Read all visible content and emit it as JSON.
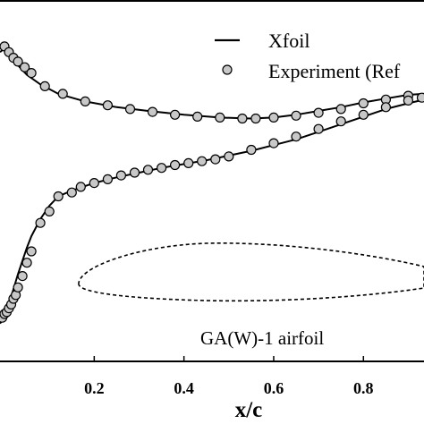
{
  "chart_data": {
    "type": "line",
    "xlabel": "x/c",
    "ylabel": "",
    "xlim": [
      -0.01,
      0.935
    ],
    "ylim": [
      -1.25,
      0.65
    ],
    "x_ticks": [
      0.2,
      0.4,
      0.6,
      0.8
    ],
    "x_tick_labels": [
      "0.2",
      "0.4",
      "0.6",
      "0.8"
    ],
    "grid": false,
    "legend_position": "top-right",
    "legend": [
      {
        "label": "Xfoil",
        "marker": "line"
      },
      {
        "label": "Experiment (Ref",
        "marker": "circle"
      }
    ],
    "annotation": "GA(W)-1 airfoil",
    "colors": {
      "line": "#000000",
      "marker_fill": "#c8c8c8",
      "marker_edge": "#000000"
    },
    "series": [
      {
        "name": "Xfoil",
        "role": "upper-surface",
        "x": [
          -0.01,
          0.0,
          0.01,
          0.02,
          0.03,
          0.05,
          0.08,
          0.12,
          0.18,
          0.25,
          0.32,
          0.4,
          0.48,
          0.55,
          0.6,
          0.65,
          0.7,
          0.75,
          0.8,
          0.85,
          0.9,
          0.935
        ],
        "y": [
          0.38,
          0.4,
          0.37,
          0.34,
          0.31,
          0.26,
          0.21,
          0.16,
          0.12,
          0.09,
          0.07,
          0.05,
          0.035,
          0.03,
          0.035,
          0.05,
          0.07,
          0.09,
          0.115,
          0.135,
          0.155,
          0.16
        ]
      },
      {
        "name": "Xfoil",
        "role": "lower-surface",
        "x": [
          -0.01,
          0.0,
          0.005,
          0.01,
          0.015,
          0.02,
          0.03,
          0.04,
          0.05,
          0.06,
          0.08,
          0.1,
          0.12,
          0.15,
          0.2,
          0.25,
          0.3,
          0.35,
          0.4,
          0.45,
          0.5,
          0.55,
          0.6,
          0.65,
          0.7,
          0.75,
          0.8,
          0.85,
          0.9,
          0.935
        ],
        "y": [
          -1.05,
          -1.02,
          -0.98,
          -0.94,
          -0.91,
          -0.87,
          -0.79,
          -0.72,
          -0.65,
          -0.59,
          -0.5,
          -0.43,
          -0.38,
          -0.35,
          -0.31,
          -0.28,
          -0.255,
          -0.23,
          -0.21,
          -0.19,
          -0.165,
          -0.14,
          -0.11,
          -0.08,
          -0.04,
          0.0,
          0.04,
          0.08,
          0.11,
          0.13
        ]
      },
      {
        "name": "Experiment (Ref",
        "role": "upper-surface",
        "x": [
          0.0,
          0.01,
          0.02,
          0.03,
          0.045,
          0.06,
          0.09,
          0.13,
          0.18,
          0.23,
          0.28,
          0.33,
          0.38,
          0.43,
          0.48,
          0.53,
          0.56,
          0.6,
          0.65,
          0.7,
          0.75,
          0.8,
          0.85,
          0.9
        ],
        "y": [
          0.41,
          0.38,
          0.35,
          0.33,
          0.3,
          0.27,
          0.2,
          0.16,
          0.12,
          0.1,
          0.08,
          0.065,
          0.05,
          0.04,
          0.035,
          0.03,
          0.03,
          0.035,
          0.045,
          0.06,
          0.08,
          0.11,
          0.13,
          0.15
        ]
      },
      {
        "name": "Experiment (Ref",
        "role": "lower-surface",
        "x": [
          -0.005,
          0.0,
          0.005,
          0.01,
          0.015,
          0.02,
          0.025,
          0.03,
          0.04,
          0.05,
          0.06,
          0.08,
          0.1,
          0.12,
          0.15,
          0.17,
          0.2,
          0.23,
          0.26,
          0.29,
          0.32,
          0.35,
          0.38,
          0.41,
          0.44,
          0.47,
          0.5,
          0.55,
          0.6,
          0.65,
          0.7,
          0.75,
          0.8,
          0.85,
          0.9,
          0.93
        ],
        "y": [
          -1.02,
          -1.0,
          -0.99,
          -0.97,
          -0.95,
          -0.92,
          -0.9,
          -0.86,
          -0.8,
          -0.73,
          -0.67,
          -0.52,
          -0.46,
          -0.38,
          -0.36,
          -0.33,
          -0.31,
          -0.29,
          -0.27,
          -0.255,
          -0.24,
          -0.23,
          -0.215,
          -0.205,
          -0.195,
          -0.185,
          -0.17,
          -0.135,
          -0.1,
          -0.065,
          -0.025,
          0.015,
          0.05,
          0.09,
          0.125,
          0.14
        ]
      }
    ]
  }
}
